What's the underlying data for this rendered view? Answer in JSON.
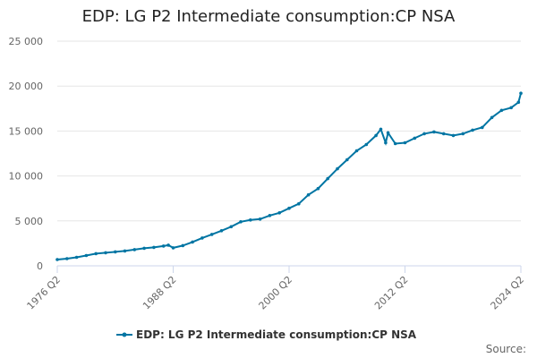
{
  "chart_data": {
    "type": "line",
    "title": "EDP: LG P2 Intermediate consumption:CP NSA",
    "xlabel": "",
    "ylabel": "",
    "x_start": "1976 Q2",
    "x_end": "2024 Q2",
    "x_ticks": [
      "1976 Q2",
      "1988 Q2",
      "2000 Q2",
      "2012 Q2",
      "2024 Q2"
    ],
    "y_ticks": [
      "0",
      "5 000",
      "10 000",
      "15 000",
      "20 000",
      "25 000"
    ],
    "ylim": [
      0,
      25000
    ],
    "grid": true,
    "legend_position": "bottom",
    "credit": "Source:",
    "series": [
      {
        "name": "EDP: LG P2 Intermediate consumption:CP NSA",
        "color": "#0075a3",
        "x": [
          "1976 Q2",
          "1977 Q2",
          "1978 Q2",
          "1979 Q2",
          "1980 Q2",
          "1981 Q2",
          "1982 Q2",
          "1983 Q2",
          "1984 Q2",
          "1985 Q2",
          "1986 Q2",
          "1987 Q2",
          "1987 Q4",
          "1988 Q2",
          "1989 Q2",
          "1990 Q2",
          "1991 Q2",
          "1992 Q2",
          "1993 Q2",
          "1994 Q2",
          "1995 Q2",
          "1996 Q2",
          "1997 Q2",
          "1998 Q2",
          "1999 Q2",
          "2000 Q2",
          "2001 Q2",
          "2002 Q2",
          "2003 Q2",
          "2004 Q2",
          "2005 Q2",
          "2006 Q2",
          "2007 Q2",
          "2008 Q2",
          "2009 Q2",
          "2009 Q4",
          "2010 Q2",
          "2010 Q3",
          "2011 Q2",
          "2012 Q2",
          "2013 Q2",
          "2014 Q2",
          "2015 Q2",
          "2016 Q2",
          "2017 Q2",
          "2018 Q2",
          "2019 Q2",
          "2020 Q2",
          "2021 Q2",
          "2022 Q2",
          "2023 Q2",
          "2024 Q1",
          "2024 Q2"
        ],
        "values": [
          700,
          800,
          950,
          1150,
          1350,
          1450,
          1550,
          1650,
          1800,
          1950,
          2050,
          2200,
          2300,
          2000,
          2250,
          2650,
          3100,
          3500,
          3900,
          4350,
          4900,
          5100,
          5200,
          5600,
          5900,
          6400,
          6900,
          7900,
          8600,
          9700,
          10800,
          11800,
          12800,
          13500,
          14500,
          15200,
          13700,
          14800,
          13600,
          13700,
          14200,
          14700,
          14900,
          14700,
          14500,
          14700,
          15100,
          15400,
          16500,
          17300,
          17600,
          18200,
          19200
        ]
      }
    ]
  }
}
